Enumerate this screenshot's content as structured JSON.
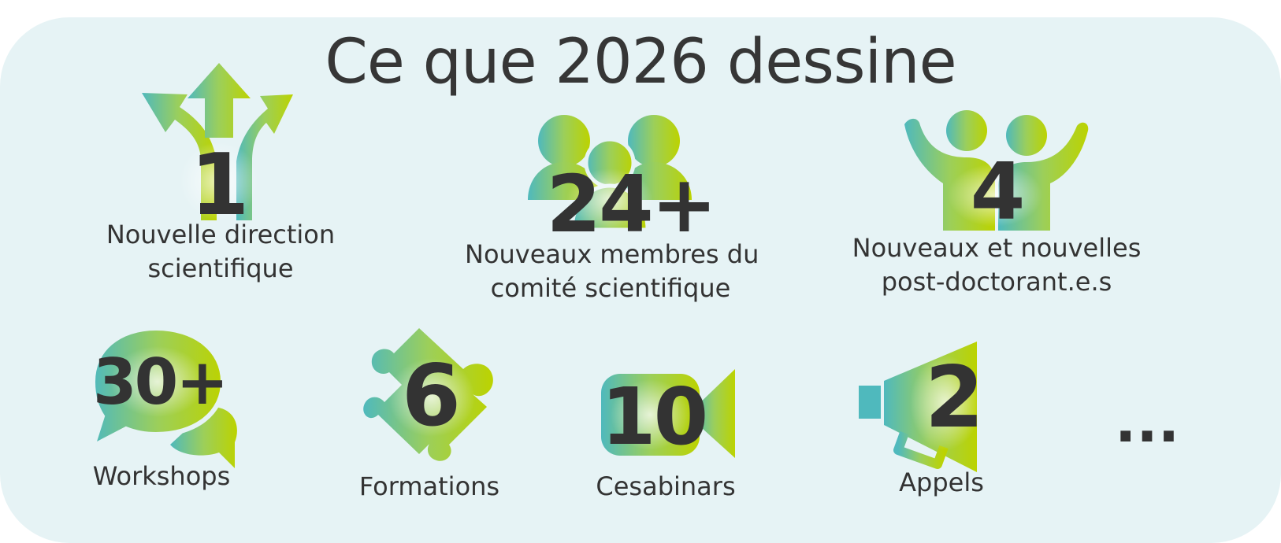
{
  "title": "Ce que 2026 dessine",
  "colors": {
    "background": "#e6f3f5",
    "gradient_start": "#4fb9bd",
    "gradient_end": "#b9d100",
    "text": "#333333"
  },
  "items": [
    {
      "number": "1",
      "label_lines": [
        "Nouvelle direction",
        "scientifique"
      ],
      "icon": "branching-arrows-icon"
    },
    {
      "number": "24+",
      "label_lines": [
        "Nouveaux membres du",
        "comité scientifique"
      ],
      "icon": "group-people-icon"
    },
    {
      "number": "4",
      "label_lines": [
        "Nouveaux et nouvelles",
        "post-doctorant.e.s"
      ],
      "icon": "cheering-people-icon"
    },
    {
      "number": "30+",
      "label_lines": [
        "Workshops"
      ],
      "icon": "speech-bubbles-icon"
    },
    {
      "number": "6",
      "label_lines": [
        "Formations"
      ],
      "icon": "puzzle-piece-icon"
    },
    {
      "number": "10",
      "label_lines": [
        "Cesabinars"
      ],
      "icon": "video-camera-icon"
    },
    {
      "number": "2",
      "label_lines": [
        "Appels"
      ],
      "icon": "megaphone-icon"
    }
  ],
  "ellipsis": "..."
}
